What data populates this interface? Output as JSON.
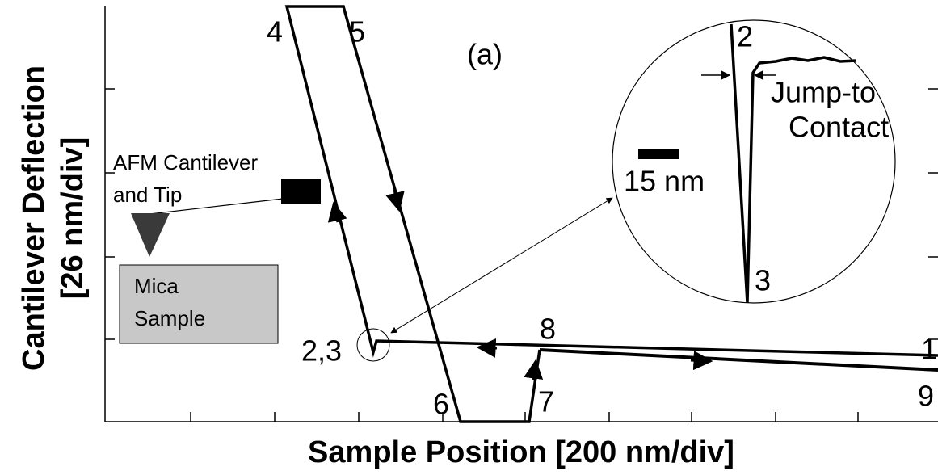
{
  "figure_label": "(a)",
  "axes": {
    "x_label": "Sample Position [200 nm/div]",
    "y_label": [
      "Cantilever Deflection",
      "[26 nm/div]"
    ]
  },
  "points": {
    "p1": "1",
    "p9": "9",
    "p23": "2,3",
    "p4": "4",
    "p5": "5",
    "p6": "6",
    "p7": "7",
    "p8": "8"
  },
  "inset": {
    "p2": "2",
    "p3": "3",
    "annotation": [
      "Jump-to",
      "Contact"
    ],
    "scale_bar": "15 nm"
  },
  "cantilever": [
    "AFM Cantilever",
    "and Tip"
  ],
  "sample": [
    "Mica",
    "Sample"
  ]
}
